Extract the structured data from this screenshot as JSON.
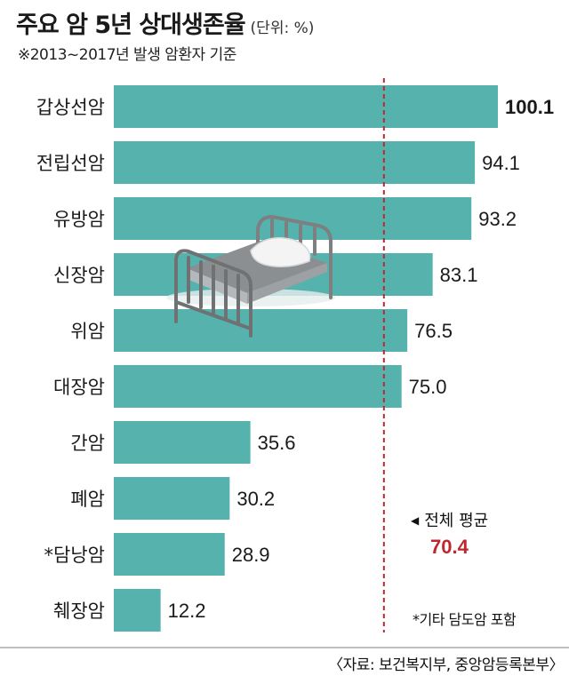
{
  "header": {
    "title": "주요 암 5년 상대생존율",
    "unit": "(단위: %)",
    "subtitle": "※2013~2017년 발생 암환자 기준"
  },
  "average": {
    "label": "전체 평균",
    "value": "70.4"
  },
  "footnote": "*기타 담도암 포함",
  "source": "〈자료: 보건복지부, 중앙암등록본부〉",
  "colors": {
    "bar": "#56b2ad",
    "average_line": "#c0272d",
    "average_value": "#c0272d"
  },
  "illustration": {
    "icon": "hospital-bed-icon"
  },
  "chart_data": {
    "type": "bar",
    "orientation": "horizontal",
    "categories": [
      "갑상선암",
      "전립선암",
      "유방암",
      "신장암",
      "위암",
      "대장암",
      "간암",
      "폐암",
      "*담낭암",
      "췌장암"
    ],
    "values": [
      100.1,
      94.1,
      93.2,
      83.1,
      76.5,
      75.0,
      35.6,
      30.2,
      28.9,
      12.2
    ],
    "value_labels": [
      "100.1",
      "94.1",
      "93.2",
      "83.1",
      "76.5",
      "75.0",
      "35.6",
      "30.2",
      "28.9",
      "12.2"
    ],
    "reference_line": {
      "value": 70.4
    },
    "xlim": [
      0,
      100.1
    ],
    "grid": false,
    "title": "주요 암 5년 상대생존율",
    "xlabel": "",
    "ylabel": ""
  }
}
